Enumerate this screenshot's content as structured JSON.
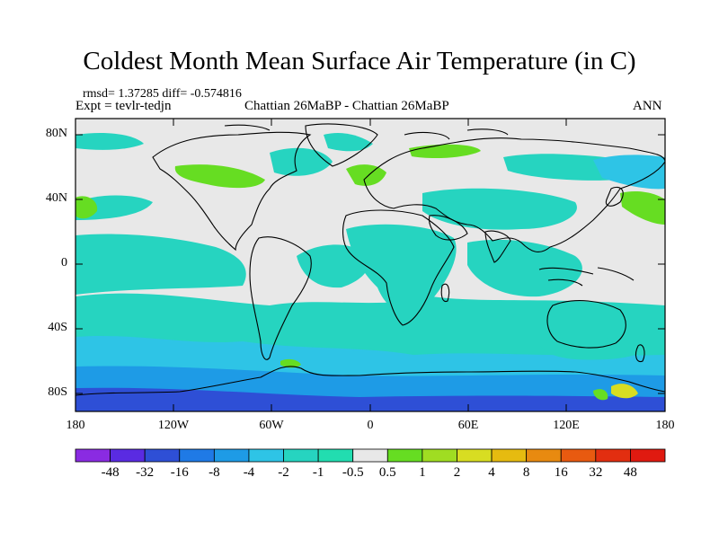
{
  "title": "Coldest Month Mean Surface Air Temperature (in C)",
  "stats_line": "rmsd= 1.37285 diff= -0.574816",
  "expt_line": "Expt = tevlr-tedjn",
  "center_line": "Chattian  26MaBP - Chattian  26MaBP",
  "season": "ANN",
  "lat_labels": [
    "80N",
    "40N",
    "0",
    "40S",
    "80S"
  ],
  "lon_labels": [
    "180",
    "120W",
    "60W",
    "0",
    "60E",
    "120E",
    "180"
  ],
  "colorbar": {
    "labels": [
      "-48",
      "-32",
      "-16",
      "-8",
      "-4",
      "-2",
      "-1",
      "-0.5",
      "0.5",
      "1",
      "2",
      "4",
      "8",
      "16",
      "32",
      "48"
    ],
    "colors": [
      "#8a2be2",
      "#5a2be2",
      "#2e4fd6",
      "#1f7ae6",
      "#1e9be6",
      "#2ec4e6",
      "#26d4c0",
      "#22ddb0",
      "#e8e8e8",
      "#66dd22",
      "#a0dd22",
      "#d8dd22",
      "#e6bb10",
      "#e88a10",
      "#e85a10",
      "#e22e10",
      "#e01a10"
    ]
  },
  "colors": {
    "neutral": "#e8e8e8",
    "cyan": "#26d4c0",
    "lightblue": "#2ec4e6",
    "blue": "#1e9be6",
    "green": "#66dd22",
    "yellow": "#d8dd22",
    "deepblue": "#2e4fd6"
  }
}
